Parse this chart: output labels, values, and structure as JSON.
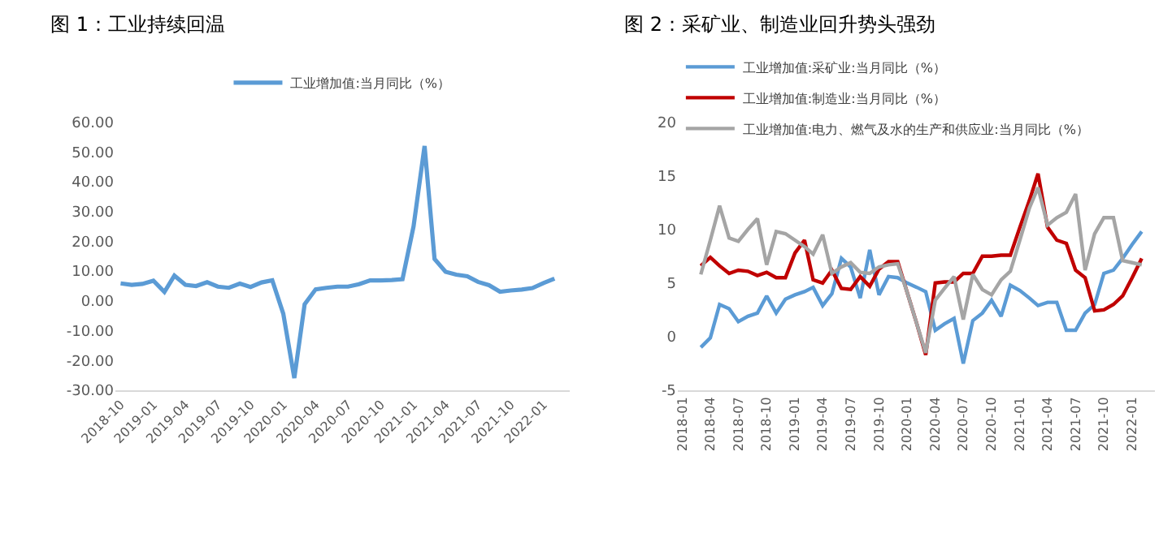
{
  "chart_data": [
    {
      "type": "line",
      "title": "图 1：工业持续回温",
      "x": [
        "2018-10",
        "2018-11",
        "2018-12",
        "2019-01",
        "2019-02",
        "2019-03",
        "2019-04",
        "2019-05",
        "2019-06",
        "2019-07",
        "2019-08",
        "2019-09",
        "2019-10",
        "2019-11",
        "2019-12",
        "2020-01",
        "2020-02",
        "2020-03",
        "2020-04",
        "2020-05",
        "2020-06",
        "2020-07",
        "2020-08",
        "2020-09",
        "2020-10",
        "2020-11",
        "2020-12",
        "2021-01",
        "2021-02",
        "2021-03",
        "2021-04",
        "2021-05",
        "2021-06",
        "2021-07",
        "2021-08",
        "2021-09",
        "2021-10",
        "2021-11",
        "2021-12",
        "2022-01",
        "2022-02"
      ],
      "series": [
        {
          "name": "工业增加值:当月同比（%）",
          "color": "#5b9bd5",
          "values": [
            5.9,
            5.4,
            5.7,
            6.8,
            3.0,
            8.5,
            5.4,
            5.0,
            6.3,
            4.8,
            4.4,
            5.8,
            4.7,
            6.2,
            6.9,
            -4.3,
            -25.9,
            -1.1,
            3.9,
            4.4,
            4.8,
            4.8,
            5.6,
            6.9,
            6.9,
            7.0,
            7.3,
            25.0,
            52.0,
            14.1,
            9.8,
            8.8,
            8.3,
            6.4,
            5.3,
            3.1,
            3.5,
            3.8,
            4.3,
            6.0,
            7.5
          ]
        }
      ],
      "xlim": [
        "2018-09-16",
        "2022-03-16"
      ],
      "xticks": [
        "2018-10",
        "2019-01",
        "2019-04",
        "2019-07",
        "2019-10",
        "2020-01",
        "2020-04",
        "2020-07",
        "2020-10",
        "2021-01",
        "2021-04",
        "2021-07",
        "2021-10",
        "2022-01"
      ],
      "ylim": [
        -30,
        60
      ],
      "yticks": [
        {
          "value": -30,
          "label": "-30.00"
        },
        {
          "value": -20,
          "label": "-20.00"
        },
        {
          "value": -10,
          "label": "-10.00"
        },
        {
          "value": 0,
          "label": "0.00"
        },
        {
          "value": 10,
          "label": "10.00"
        },
        {
          "value": 20,
          "label": "20.00"
        },
        {
          "value": 30,
          "label": "30.00"
        },
        {
          "value": 40,
          "label": "40.00"
        },
        {
          "value": 50,
          "label": "50.00"
        },
        {
          "value": 60,
          "label": "60.00"
        }
      ],
      "grid": false,
      "legend": "top"
    },
    {
      "type": "line",
      "title": "图 2：采矿业、制造业回升势头强劲",
      "x": [
        "2018-03",
        "2018-04",
        "2018-05",
        "2018-06",
        "2018-07",
        "2018-08",
        "2018-09",
        "2018-10",
        "2018-11",
        "2018-12",
        "2019-01",
        "2019-02",
        "2019-03",
        "2019-04",
        "2019-05",
        "2019-06",
        "2019-07",
        "2019-08",
        "2019-09",
        "2019-10",
        "2019-11",
        "2019-12",
        "2020-01",
        "2020-02",
        "2020-03",
        "2020-04",
        "2020-05",
        "2020-06",
        "2020-07",
        "2020-08",
        "2020-09",
        "2020-10",
        "2020-11",
        "2020-12",
        "2021-01",
        "2021-02",
        "2021-03",
        "2021-04",
        "2021-05",
        "2021-06",
        "2021-07",
        "2021-08",
        "2021-09",
        "2021-10",
        "2021-11",
        "2021-12",
        "2022-01",
        "2022-02"
      ],
      "series": [
        {
          "name": "工业增加值:采矿业:当月同比（%）",
          "color": "#5b9bd5",
          "values": [
            -1.0,
            -0.1,
            3.0,
            2.6,
            1.4,
            1.9,
            2.2,
            3.8,
            2.2,
            3.5,
            3.9,
            4.2,
            4.6,
            2.9,
            4.0,
            7.3,
            6.5,
            3.6,
            8.1,
            3.9,
            5.6,
            5.5,
            5.0,
            4.6,
            4.2,
            0.6,
            1.2,
            1.7,
            -2.5,
            1.5,
            2.2,
            3.4,
            1.9,
            4.8,
            4.3,
            3.6,
            2.9,
            3.2,
            3.2,
            0.6,
            0.6,
            2.2,
            3.0,
            5.9,
            6.2,
            7.3,
            8.6,
            9.8
          ]
        },
        {
          "name": "工业增加值:制造业:当月同比（%）",
          "color": "#c00000",
          "values": [
            6.6,
            7.4,
            6.6,
            5.9,
            6.2,
            6.1,
            5.7,
            6.0,
            5.5,
            5.5,
            7.8,
            9.0,
            5.3,
            5.0,
            6.2,
            4.5,
            4.4,
            5.6,
            4.7,
            6.3,
            7.0,
            7.0,
            4.1,
            1.2,
            -1.7,
            5.0,
            5.1,
            5.1,
            5.9,
            5.9,
            7.5,
            7.5,
            7.6,
            7.6,
            10.2,
            12.7,
            15.2,
            10.2,
            9.0,
            8.7,
            6.2,
            5.5,
            2.4,
            2.5,
            3.0,
            3.8,
            5.5,
            7.3
          ]
        },
        {
          "name": "工业增加值:电力、燃气及水的生产和供应业:当月同比（%）",
          "color": "#a5a5a5",
          "values": [
            5.8,
            9.0,
            12.2,
            9.2,
            8.9,
            10.0,
            11.0,
            6.7,
            9.8,
            9.6,
            9.0,
            8.4,
            7.7,
            9.5,
            5.9,
            6.5,
            6.9,
            6.0,
            5.9,
            6.5,
            6.7,
            6.8,
            4.1,
            1.2,
            -1.5,
            3.4,
            4.5,
            5.6,
            1.6,
            5.8,
            4.4,
            3.9,
            5.3,
            6.1,
            9.0,
            12.0,
            13.9,
            10.4,
            11.1,
            11.6,
            13.3,
            6.2,
            9.6,
            11.1,
            11.1,
            7.1,
            6.9,
            6.7
          ]
        }
      ],
      "xlim": [
        "2017-12-16",
        "2022-03-16"
      ],
      "xticks": [
        "2018-01",
        "2018-04",
        "2018-07",
        "2018-10",
        "2019-01",
        "2019-04",
        "2019-07",
        "2019-10",
        "2020-01",
        "2020-04",
        "2020-07",
        "2020-10",
        "2021-01",
        "2021-04",
        "2021-07",
        "2021-10",
        "2022-01"
      ],
      "ylim": [
        -5,
        20
      ],
      "yticks": [
        -5,
        0,
        5,
        10,
        15,
        20
      ],
      "grid": false,
      "legend": "top left"
    }
  ]
}
